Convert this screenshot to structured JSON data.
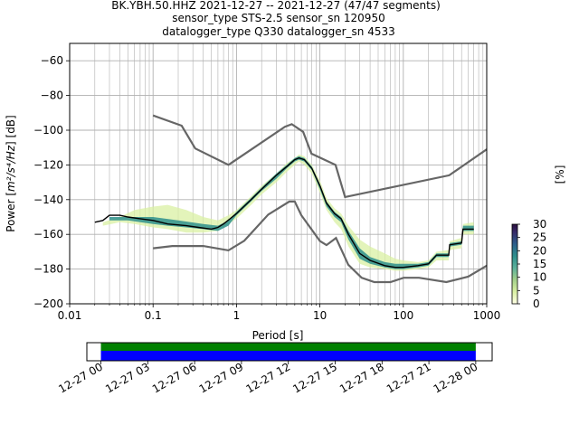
{
  "title": {
    "line1": "BK.YBH.50.HHZ   2021-12-27 -- 2021-12-27  (47/47 segments)",
    "line2": "sensor_type STS-2.5 sensor_sn 120950",
    "line3": "datalogger_type Q330 datalogger_sn 4533"
  },
  "colors": {
    "nm_models": "#666666",
    "mode": "#000000",
    "grid": "#b0b0b0",
    "coverage_good": "#008000",
    "coverage_data": "#0000ff"
  },
  "chart_data": [
    {
      "type": "heatmap",
      "title": "BK.YBH.50.HHZ   2021-12-27 -- 2021-12-27  (47/47 segments)",
      "xlabel": "Period [s]",
      "ylabel_prefix": "Power [",
      "ylabel_math": "m²/s⁴/Hz",
      "ylabel_suffix": "] [dB]",
      "xscale": "log",
      "xlim": [
        0.01,
        1000
      ],
      "ylim": [
        -200,
        -50
      ],
      "grid": true,
      "xticks": [
        {
          "v": 0.01,
          "label": "0.01"
        },
        {
          "v": 0.1,
          "label": "0.1"
        },
        {
          "v": 1,
          "label": "1"
        },
        {
          "v": 10,
          "label": "10"
        },
        {
          "v": 100,
          "label": "100"
        },
        {
          "v": 1000,
          "label": "1000"
        }
      ],
      "yticks": [
        -200,
        -180,
        -160,
        -140,
        -120,
        -100,
        -80,
        -60
      ],
      "colorbar": {
        "label": "[%]",
        "range": [
          0,
          30
        ],
        "ticks": [
          0,
          5,
          10,
          15,
          20,
          25,
          30
        ]
      },
      "series": [
        {
          "name": "NHNM",
          "points": [
            [
              0.1,
              -91.5
            ],
            [
              0.22,
              -97.4
            ],
            [
              0.32,
              -110.5
            ],
            [
              0.8,
              -120.0
            ],
            [
              3.8,
              -98.0
            ],
            [
              4.6,
              -96.5
            ],
            [
              6.3,
              -101.0
            ],
            [
              7.9,
              -113.5
            ],
            [
              15.4,
              -120.0
            ],
            [
              20.0,
              -138.5
            ],
            [
              354.8,
              -126.0
            ],
            [
              1000,
              -111.0
            ]
          ]
        },
        {
          "name": "NLNM",
          "points": [
            [
              0.1,
              -168.0
            ],
            [
              0.17,
              -166.7
            ],
            [
              0.4,
              -166.7
            ],
            [
              0.8,
              -169.2
            ],
            [
              1.24,
              -163.7
            ],
            [
              2.4,
              -148.6
            ],
            [
              4.3,
              -141.1
            ],
            [
              5.0,
              -141.1
            ],
            [
              6.0,
              -149.0
            ],
            [
              10.0,
              -163.8
            ],
            [
              12.0,
              -166.2
            ],
            [
              15.6,
              -162.1
            ],
            [
              21.9,
              -177.5
            ],
            [
              31.6,
              -185.0
            ],
            [
              45.0,
              -187.5
            ],
            [
              70.0,
              -187.5
            ],
            [
              101.0,
              -185.0
            ],
            [
              154.0,
              -185.0
            ],
            [
              328.0,
              -187.5
            ],
            [
              600.0,
              -184.4
            ],
            [
              1000,
              -178.0
            ]
          ]
        },
        {
          "name": "mode",
          "points": [
            [
              0.02,
              -153
            ],
            [
              0.025,
              -152
            ],
            [
              0.03,
              -149
            ],
            [
              0.04,
              -149
            ],
            [
              0.05,
              -150
            ],
            [
              0.07,
              -151
            ],
            [
              0.1,
              -152
            ],
            [
              0.15,
              -154
            ],
            [
              0.25,
              -155
            ],
            [
              0.35,
              -156
            ],
            [
              0.5,
              -157
            ],
            [
              0.6,
              -156
            ],
            [
              0.7,
              -154
            ],
            [
              1.0,
              -148
            ],
            [
              1.5,
              -140
            ],
            [
              2.0,
              -134
            ],
            [
              3.0,
              -126
            ],
            [
              4.0,
              -121
            ],
            [
              5.0,
              -117
            ],
            [
              5.6,
              -116
            ],
            [
              6.5,
              -117
            ],
            [
              8.0,
              -122
            ],
            [
              10.0,
              -132
            ],
            [
              12.0,
              -142
            ],
            [
              15.0,
              -148
            ],
            [
              18.0,
              -151
            ],
            [
              22.0,
              -160
            ],
            [
              30.0,
              -171
            ],
            [
              40.0,
              -175
            ],
            [
              60.0,
              -178
            ],
            [
              80.0,
              -179
            ],
            [
              100.0,
              -179
            ],
            [
              150.0,
              -178
            ],
            [
              200.0,
              -177
            ],
            [
              250.0,
              -172
            ],
            [
              350.0,
              -172
            ],
            [
              360.0,
              -166
            ],
            [
              500.0,
              -165
            ],
            [
              520.0,
              -157
            ],
            [
              700.0,
              -157
            ]
          ]
        },
        {
          "name": "density_outer",
          "points": [
            [
              0.025,
              -153
            ],
            [
              0.04,
              -150
            ],
            [
              0.06,
              -146
            ],
            [
              0.1,
              -144
            ],
            [
              0.15,
              -143
            ],
            [
              0.25,
              -146
            ],
            [
              0.4,
              -150
            ],
            [
              0.6,
              -152
            ],
            [
              0.8,
              -149
            ],
            [
              1.0,
              -146
            ],
            [
              1.5,
              -138
            ],
            [
              2.0,
              -132
            ],
            [
              3.0,
              -125
            ],
            [
              4.0,
              -119
            ],
            [
              5.0,
              -116
            ],
            [
              5.6,
              -114
            ],
            [
              6.5,
              -115
            ],
            [
              8.0,
              -120
            ],
            [
              10.0,
              -129
            ],
            [
              12.0,
              -139
            ],
            [
              15.0,
              -145
            ],
            [
              18.0,
              -148
            ],
            [
              22.0,
              -155
            ],
            [
              30.0,
              -163
            ],
            [
              40.0,
              -167
            ],
            [
              60.0,
              -171
            ],
            [
              80.0,
              -174
            ],
            [
              100.0,
              -175
            ],
            [
              150.0,
              -176
            ],
            [
              200.0,
              -175
            ],
            [
              250.0,
              -170
            ],
            [
              350.0,
              -169
            ],
            [
              360.0,
              -164
            ],
            [
              500.0,
              -162
            ],
            [
              520.0,
              -154
            ],
            [
              700.0,
              -153
            ],
            [
              700.0,
              -160
            ],
            [
              520.0,
              -160
            ],
            [
              500.0,
              -168
            ],
            [
              360.0,
              -169
            ],
            [
              350.0,
              -175
            ],
            [
              250.0,
              -175
            ],
            [
              200.0,
              -179
            ],
            [
              150.0,
              -180
            ],
            [
              100.0,
              -181
            ],
            [
              80.0,
              -181
            ],
            [
              60.0,
              -180
            ],
            [
              40.0,
              -179
            ],
            [
              30.0,
              -177
            ],
            [
              22.0,
              -167
            ],
            [
              18.0,
              -157
            ],
            [
              15.0,
              -153
            ],
            [
              12.0,
              -146
            ],
            [
              10.0,
              -136
            ],
            [
              8.0,
              -125
            ],
            [
              6.5,
              -120
            ],
            [
              5.6,
              -118
            ],
            [
              5.0,
              -120
            ],
            [
              4.0,
              -124
            ],
            [
              3.0,
              -130
            ],
            [
              2.0,
              -137
            ],
            [
              1.5,
              -143
            ],
            [
              1.0,
              -151
            ],
            [
              0.8,
              -154
            ],
            [
              0.6,
              -158
            ],
            [
              0.4,
              -159
            ],
            [
              0.25,
              -159
            ],
            [
              0.15,
              -157
            ],
            [
              0.1,
              -156
            ],
            [
              0.06,
              -154
            ],
            [
              0.04,
              -153
            ],
            [
              0.025,
              -155
            ]
          ]
        },
        {
          "name": "density_core",
          "points": [
            [
              0.03,
              -150
            ],
            [
              0.05,
              -150
            ],
            [
              0.1,
              -150
            ],
            [
              0.2,
              -152
            ],
            [
              0.4,
              -154
            ],
            [
              0.6,
              -155
            ],
            [
              0.8,
              -152
            ],
            [
              1.0,
              -147
            ],
            [
              1.5,
              -139
            ],
            [
              2.0,
              -133
            ],
            [
              3.0,
              -125
            ],
            [
              4.0,
              -120
            ],
            [
              5.0,
              -116
            ],
            [
              5.6,
              -115
            ],
            [
              6.5,
              -116
            ],
            [
              8.0,
              -121
            ],
            [
              10.0,
              -131
            ],
            [
              12.0,
              -141
            ],
            [
              15.0,
              -147
            ],
            [
              18.0,
              -150
            ],
            [
              22.0,
              -158
            ],
            [
              30.0,
              -168
            ],
            [
              40.0,
              -173
            ],
            [
              60.0,
              -176
            ],
            [
              80.0,
              -177
            ],
            [
              100.0,
              -177
            ],
            [
              150.0,
              -177
            ],
            [
              200.0,
              -176
            ],
            [
              250.0,
              -171
            ],
            [
              350.0,
              -171
            ],
            [
              360.0,
              -165
            ],
            [
              500.0,
              -164
            ],
            [
              520.0,
              -155
            ],
            [
              700.0,
              -155
            ],
            [
              700.0,
              -158
            ],
            [
              520.0,
              -158
            ],
            [
              500.0,
              -166
            ],
            [
              360.0,
              -167
            ],
            [
              350.0,
              -173
            ],
            [
              250.0,
              -173
            ],
            [
              200.0,
              -178
            ],
            [
              150.0,
              -179
            ],
            [
              100.0,
              -180
            ],
            [
              80.0,
              -180
            ],
            [
              60.0,
              -179
            ],
            [
              40.0,
              -177
            ],
            [
              30.0,
              -174
            ],
            [
              22.0,
              -163
            ],
            [
              18.0,
              -153
            ],
            [
              15.0,
              -150
            ],
            [
              12.0,
              -144
            ],
            [
              10.0,
              -134
            ],
            [
              8.0,
              -123
            ],
            [
              6.5,
              -118
            ],
            [
              5.6,
              -117
            ],
            [
              5.0,
              -118
            ],
            [
              4.0,
              -122
            ],
            [
              3.0,
              -128
            ],
            [
              2.0,
              -135
            ],
            [
              1.5,
              -141
            ],
            [
              1.0,
              -149
            ],
            [
              0.8,
              -155
            ],
            [
              0.6,
              -158
            ],
            [
              0.4,
              -157
            ],
            [
              0.25,
              -156
            ],
            [
              0.15,
              -155
            ],
            [
              0.1,
              -154
            ],
            [
              0.05,
              -152
            ],
            [
              0.03,
              -152
            ]
          ]
        }
      ]
    },
    {
      "type": "bar",
      "title": "",
      "xlabel": "",
      "ylabel": "",
      "xlim": [
        -0.3,
        8.35
      ],
      "x_unit": "hours from 2021-12-27 00:00",
      "xticks": [
        "12-27 00",
        "12-27 03",
        "12-27 06",
        "12-27 09",
        "12-27 12",
        "12-27 15",
        "12-27 18",
        "12-27 21",
        "12-28 00"
      ],
      "series": [
        {
          "name": "good",
          "start": 0,
          "end": 8.0
        },
        {
          "name": "data",
          "start": 0,
          "end": 8.0
        }
      ]
    }
  ]
}
